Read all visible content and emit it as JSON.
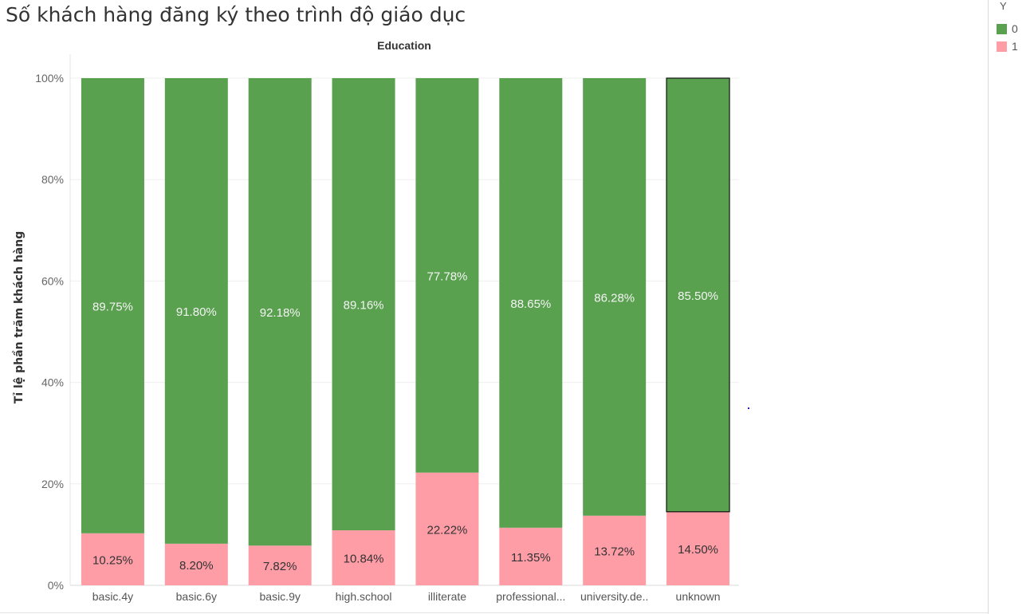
{
  "title": "Số khách hàng đăng ký theo trình độ giáo dục",
  "legend": {
    "title": "Y",
    "items": [
      {
        "label": "0",
        "color": "#59a14f"
      },
      {
        "label": "1",
        "color": "#ff9da7"
      }
    ]
  },
  "chart_data": {
    "type": "bar",
    "stacked": true,
    "title": "Số khách hàng đăng ký theo trình độ giáo dục",
    "xlabel": "Education",
    "ylabel": "Tỉ lệ phần trăm khách hàng",
    "ylim": [
      0,
      100
    ],
    "yticks": [
      "0%",
      "20%",
      "40%",
      "60%",
      "80%",
      "100%"
    ],
    "categories": [
      "basic.4y",
      "basic.6y",
      "basic.9y",
      "high.school",
      "illiterate",
      "professional...",
      "university.de..",
      "unknown"
    ],
    "series": [
      {
        "name": "1",
        "color": "#ff9da7",
        "values": [
          10.25,
          8.2,
          7.82,
          10.84,
          22.22,
          11.35,
          13.72,
          14.5
        ],
        "labels": [
          "10.25%",
          "8.20%",
          "7.82%",
          "10.84%",
          "22.22%",
          "11.35%",
          "13.72%",
          "14.50%"
        ]
      },
      {
        "name": "0",
        "color": "#59a14f",
        "values": [
          89.75,
          91.8,
          92.18,
          89.16,
          77.78,
          88.65,
          86.28,
          85.5
        ],
        "labels": [
          "89.75%",
          "91.80%",
          "92.18%",
          "89.16%",
          "77.78%",
          "88.65%",
          "86.28%",
          "85.50%"
        ]
      }
    ],
    "highlighted_category": "unknown",
    "grid": true,
    "legend_position": "top-right"
  }
}
